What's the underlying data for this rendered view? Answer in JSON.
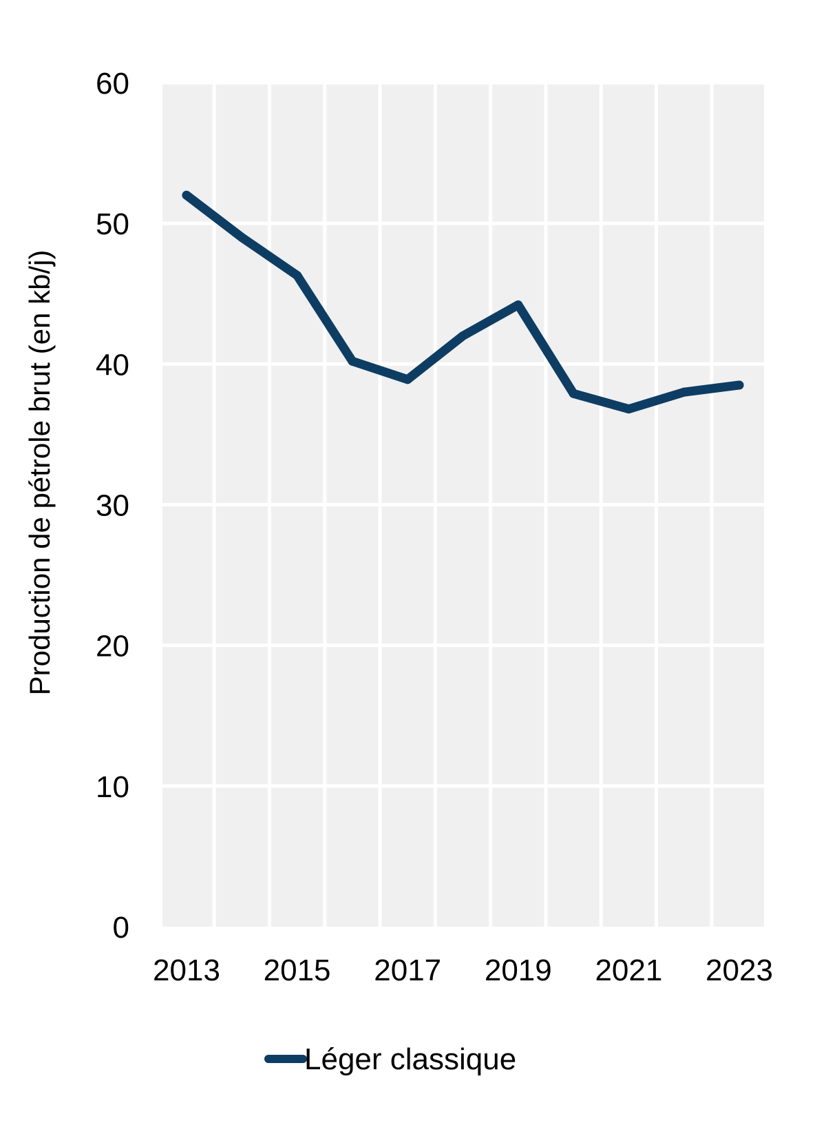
{
  "chart_data": {
    "type": "line",
    "title": "",
    "xlabel": "",
    "ylabel": "Production de pétrole brut (en kb/j)",
    "x": [
      2013,
      2014,
      2015,
      2016,
      2017,
      2018,
      2019,
      2020,
      2021,
      2022,
      2023
    ],
    "x_tick_labels": [
      "2013",
      "2015",
      "2017",
      "2019",
      "2021",
      "2023"
    ],
    "y_tick_labels": [
      "0",
      "10",
      "20",
      "30",
      "40",
      "50",
      "60"
    ],
    "ylim": [
      0,
      60
    ],
    "grid": true,
    "legend_position": "bottom",
    "series": [
      {
        "name": "Léger classique",
        "color": "#0e3d63",
        "values": [
          52.0,
          49.0,
          46.3,
          40.2,
          38.9,
          42.0,
          44.2,
          37.9,
          36.8,
          38.0,
          38.5
        ]
      }
    ],
    "colors": {
      "plot_background": "#f0f0f0",
      "grid": "#ffffff"
    }
  }
}
